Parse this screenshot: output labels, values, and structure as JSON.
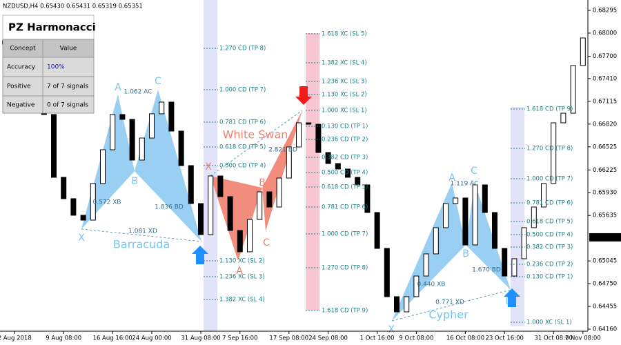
{
  "chart_data": {
    "type": "candlestick",
    "title": "NZDUSD,H4  0.65430 0.65431 0.65319 0.65351",
    "categories": [
      null,
      "2 Aug 2018",
      null,
      null,
      null,
      null,
      "9 Aug 08:00",
      null,
      null,
      null,
      null,
      "16 Aug 16:00",
      null,
      null,
      null,
      "24 Aug 00:00",
      null,
      null,
      null,
      null,
      "31 Aug 08:00",
      null,
      null,
      null,
      "7 Sep 16:00",
      null,
      null,
      null,
      null,
      "17 Sep 08:00",
      null,
      null,
      null,
      "24 Sep 08:00",
      null,
      null,
      null,
      null,
      "1 Oct 16:00",
      null,
      null,
      null,
      "9 Oct 08:00",
      null,
      null,
      null,
      null,
      "16 Oct 08:00",
      null,
      null,
      null,
      "23 Oct 16:00",
      null,
      null,
      null,
      null,
      "31 Oct 08:00",
      null,
      null,
      "7 Nov 08:00"
    ],
    "open": [
      0.679,
      0.67856,
      0.67794,
      0.6766,
      0.67373,
      0.66944,
      0.66129,
      0.65852,
      0.65637,
      0.65574,
      0.66049,
      0.66487,
      0.66944,
      0.66881,
      0.66353,
      0.66639,
      0.66953,
      0.67105,
      0.66729,
      0.66281,
      0.65789,
      0.65386,
      0.66147,
      0.65879,
      0.6544,
      0.65163,
      0.65583,
      0.65941,
      0.65744,
      0.6612,
      0.66523,
      0.66836,
      0.66818,
      0.66451,
      0.66308,
      0.66237,
      0.66129,
      0.66031,
      0.65673,
      0.65207,
      0.64581,
      0.64384,
      0.64581,
      0.64849,
      0.65136,
      0.65476,
      0.65789,
      0.65861,
      0.65252,
      0.66031,
      0.65673,
      0.65207,
      0.64849,
      0.65073,
      0.65476,
      0.65744,
      0.66049,
      0.66836,
      0.66961,
      0.67579
    ],
    "close": [
      0.67856,
      0.67794,
      0.6766,
      0.67373,
      0.66944,
      0.66129,
      0.65852,
      0.65637,
      0.65574,
      0.66049,
      0.66487,
      0.66944,
      0.66881,
      0.66353,
      0.66639,
      0.66953,
      0.67105,
      0.66729,
      0.66281,
      0.65789,
      0.65386,
      0.66147,
      0.65879,
      0.6544,
      0.65163,
      0.65583,
      0.65941,
      0.65744,
      0.6612,
      0.66523,
      0.66836,
      0.66818,
      0.66451,
      0.66308,
      0.66237,
      0.66129,
      0.66031,
      0.65673,
      0.65207,
      0.64581,
      0.64384,
      0.64581,
      0.64849,
      0.65136,
      0.65476,
      0.65789,
      0.65861,
      0.65252,
      0.66031,
      0.65673,
      0.65207,
      0.64849,
      0.65073,
      0.65476,
      0.65744,
      0.66049,
      0.66836,
      0.66961,
      0.67579,
      0.67937
    ],
    "ylim": [
      0.6416,
      0.68295
    ],
    "yticks": [
      0.68295,
      {
        "value": 0.68,
        "label": "0.68000"
      },
      {
        "value": 0.677,
        "label": "0.67700"
      },
      {
        "value": 0.6741,
        "label": "0.67410"
      },
      0.67115,
      {
        "value": 0.6682,
        "label": "0.66820"
      },
      0.66525,
      0.66225,
      {
        "value": 0.6593,
        "label": "0.65930"
      },
      0.65635,
      0.65045,
      {
        "value": 0.6475,
        "label": "0.64750"
      },
      0.64455,
      {
        "value": 0.6416,
        "label": "0.64160"
      }
    ],
    "current_price": 0.65351,
    "panel": {
      "title": "PZ Harmonacci",
      "header": [
        "Concept",
        "Value"
      ],
      "rows": [
        [
          "Accuracy",
          "100%"
        ],
        [
          "Positive",
          "7 of 7 signals"
        ],
        [
          "Negative",
          "0 of 7 signals"
        ]
      ]
    },
    "annotations": [
      "X",
      "A",
      "B",
      "C",
      "0.572 XB",
      "1.062 AC",
      "1.836 BD",
      "1.081 XD",
      "Barracuda",
      "X",
      "A",
      "B",
      "C",
      "White Swan",
      "2.821 BD",
      "X",
      "A",
      "B",
      "C",
      "D",
      "0.440 XB",
      "1.119 AC",
      "1.670 BD",
      "0.771 XD",
      "Cypher"
    ],
    "levels": [
      [
        "1.270 CD (TP 8)",
        "1.000 CD (TP 7)",
        "0.781 CD (TP 6)",
        "0.618 CD (TP 5)",
        "0.500 CD (TP 4)",
        "1.130 XC (SL 2)",
        "1.236 XC (SL 3)",
        "1.382 XC (SL 4)"
      ],
      [
        "1.618 XC (SL 5)",
        "1.382 XC (SL 4)",
        "1.236 XC (SL 3)",
        "1.130 XC (SL 2)",
        "1.000 XC (SL 1)",
        "0.130 CD (TP 1)",
        "0.236 CD (TP 2)",
        "0.382 CD (TP 3)",
        "0.500 CD (TP 4)",
        "0.618 CD (TP 5)",
        "0.781 CD (TP 6)",
        "1.000 CD (TP 7)",
        "1.270 CD (TP 8)",
        "1.618 CD (TP 9)"
      ],
      [
        "1.618 CD (TP 9)",
        "1.270 CD (TP 8)",
        "1.000 CD (TP 7)",
        "0.781 CD (TP 6)",
        "0.618 CD (TP 5)",
        "0.500 CD (TP 4)",
        "0.382 CD (TP 3)",
        "0.236 CD (TP 2)",
        "0.130 CD (TP 1)",
        "1.000 XC (SL 1)"
      ]
    ]
  }
}
